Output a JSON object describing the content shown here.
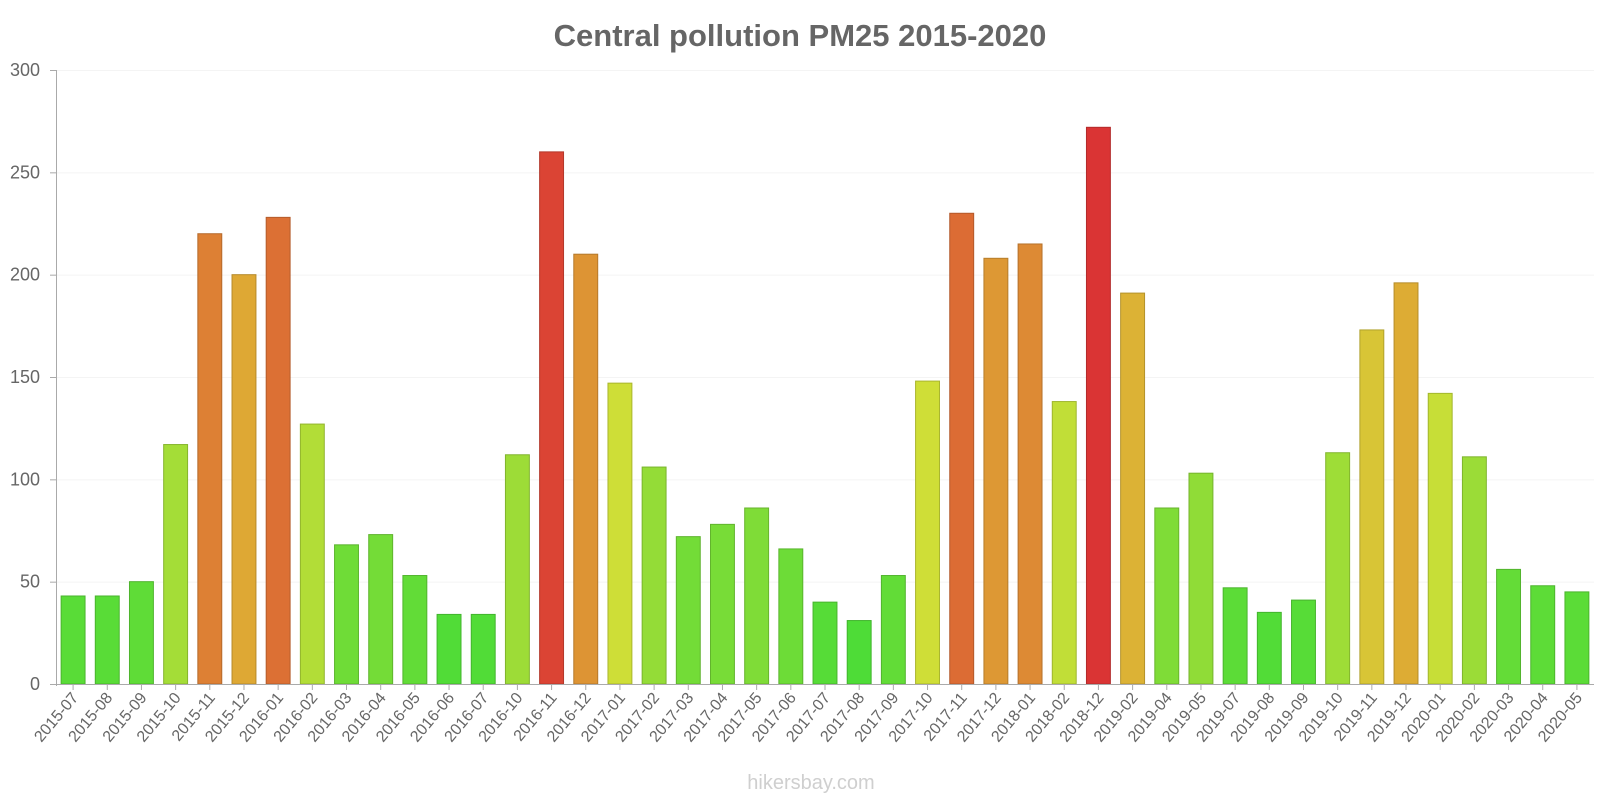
{
  "chart_data": {
    "type": "bar",
    "title": "Central pollution PM25 2015-2020",
    "xlabel": "",
    "ylabel": "",
    "ylim": [
      0,
      300
    ],
    "yticks": [
      0,
      50,
      100,
      150,
      200,
      250,
      300
    ],
    "grid": true,
    "legend": "none",
    "categories": [
      "2015-07",
      "2015-08",
      "2015-09",
      "2015-10",
      "2015-11",
      "2015-12",
      "2016-01",
      "2016-02",
      "2016-03",
      "2016-04",
      "2016-05",
      "2016-06",
      "2016-07",
      "2016-10",
      "2016-11",
      "2016-12",
      "2017-01",
      "2017-02",
      "2017-03",
      "2017-04",
      "2017-05",
      "2017-06",
      "2017-07",
      "2017-08",
      "2017-09",
      "2017-10",
      "2017-11",
      "2017-12",
      "2018-01",
      "2018-02",
      "2018-12",
      "2019-02",
      "2019-04",
      "2019-05",
      "2019-07",
      "2019-08",
      "2019-09",
      "2019-10",
      "2019-11",
      "2019-12",
      "2020-01",
      "2020-02",
      "2020-03",
      "2020-04",
      "2020-05"
    ],
    "values": [
      43,
      43,
      50,
      117,
      220,
      200,
      228,
      127,
      68,
      73,
      53,
      34,
      34,
      112,
      260,
      210,
      147,
      106,
      72,
      78,
      86,
      66,
      40,
      31,
      53,
      148,
      230,
      208,
      215,
      138,
      272,
      191,
      86,
      103,
      47,
      35,
      41,
      113,
      173,
      196,
      142,
      111,
      56,
      48,
      45
    ]
  },
  "watermark": "hikersbay.com"
}
